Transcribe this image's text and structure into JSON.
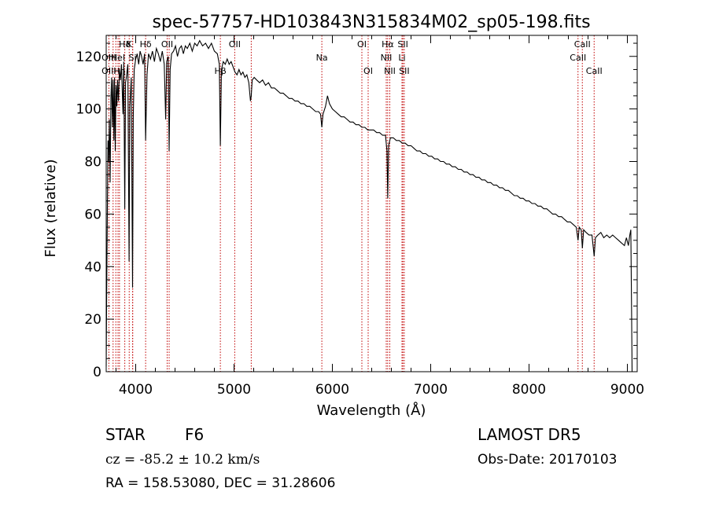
{
  "chart_data": {
    "type": "line",
    "title": "spec-57757-HD103843N315834M02_sp05-198.fits",
    "xlabel": "Wavelength (Å)",
    "ylabel": "Flux (relative)",
    "xlim": [
      3700,
      9100
    ],
    "ylim": [
      0,
      128
    ],
    "xticks": [
      4000,
      5000,
      6000,
      7000,
      8000,
      9000
    ],
    "yticks": [
      0,
      20,
      40,
      60,
      80,
      100,
      120
    ],
    "grid": false,
    "series": [
      {
        "color": "#000000",
        "points": [
          [
            3700,
            2
          ],
          [
            3705,
            30
          ],
          [
            3712,
            62
          ],
          [
            3718,
            88
          ],
          [
            3725,
            80
          ],
          [
            3732,
            96
          ],
          [
            3740,
            72
          ],
          [
            3748,
            104
          ],
          [
            3755,
            112
          ],
          [
            3763,
            93
          ],
          [
            3770,
            111
          ],
          [
            3778,
            88
          ],
          [
            3785,
            112
          ],
          [
            3792,
            84
          ],
          [
            3800,
            109
          ],
          [
            3808,
            101
          ],
          [
            3815,
            111
          ],
          [
            3825,
            103
          ],
          [
            3834,
            115
          ],
          [
            3845,
            111
          ],
          [
            3855,
            117
          ],
          [
            3870,
            98
          ],
          [
            3878,
            118
          ],
          [
            3889,
            62
          ],
          [
            3897,
            110
          ],
          [
            3905,
            112
          ],
          [
            3920,
            117
          ],
          [
            3933,
            42
          ],
          [
            3940,
            101
          ],
          [
            3955,
            112
          ],
          [
            3968,
            32
          ],
          [
            3975,
            97
          ],
          [
            3985,
            115
          ],
          [
            4000,
            119
          ],
          [
            4015,
            121
          ],
          [
            4030,
            117
          ],
          [
            4045,
            122
          ],
          [
            4060,
            120
          ],
          [
            4075,
            117
          ],
          [
            4090,
            121
          ],
          [
            4101,
            88
          ],
          [
            4115,
            113
          ],
          [
            4130,
            121
          ],
          [
            4150,
            119
          ],
          [
            4170,
            122
          ],
          [
            4190,
            118
          ],
          [
            4210,
            123
          ],
          [
            4230,
            121
          ],
          [
            4250,
            118
          ],
          [
            4270,
            122
          ],
          [
            4290,
            117
          ],
          [
            4305,
            96
          ],
          [
            4315,
            118
          ],
          [
            4330,
            120
          ],
          [
            4340,
            84
          ],
          [
            4350,
            115
          ],
          [
            4365,
            121
          ],
          [
            4385,
            122
          ],
          [
            4405,
            124
          ],
          [
            4425,
            120
          ],
          [
            4445,
            123
          ],
          [
            4465,
            124
          ],
          [
            4485,
            121
          ],
          [
            4505,
            124
          ],
          [
            4525,
            123
          ],
          [
            4550,
            125
          ],
          [
            4575,
            122
          ],
          [
            4600,
            125
          ],
          [
            4625,
            124
          ],
          [
            4650,
            126
          ],
          [
            4680,
            124
          ],
          [
            4710,
            125
          ],
          [
            4740,
            123
          ],
          [
            4770,
            125
          ],
          [
            4800,
            122
          ],
          [
            4830,
            121
          ],
          [
            4850,
            117
          ],
          [
            4861,
            86
          ],
          [
            4872,
            115
          ],
          [
            4890,
            118
          ],
          [
            4910,
            117
          ],
          [
            4930,
            119
          ],
          [
            4950,
            117
          ],
          [
            4970,
            118
          ],
          [
            4990,
            116
          ],
          [
            5010,
            114
          ],
          [
            5030,
            113
          ],
          [
            5050,
            115
          ],
          [
            5070,
            113
          ],
          [
            5090,
            114
          ],
          [
            5110,
            112
          ],
          [
            5130,
            113
          ],
          [
            5150,
            110
          ],
          [
            5167,
            103
          ],
          [
            5175,
            105
          ],
          [
            5185,
            111
          ],
          [
            5205,
            112
          ],
          [
            5230,
            111
          ],
          [
            5260,
            110
          ],
          [
            5290,
            111
          ],
          [
            5320,
            109
          ],
          [
            5350,
            110
          ],
          [
            5380,
            108
          ],
          [
            5410,
            108
          ],
          [
            5440,
            107
          ],
          [
            5470,
            106
          ],
          [
            5500,
            106
          ],
          [
            5530,
            105
          ],
          [
            5560,
            104
          ],
          [
            5590,
            104
          ],
          [
            5620,
            103
          ],
          [
            5650,
            103
          ],
          [
            5680,
            102
          ],
          [
            5710,
            102
          ],
          [
            5740,
            101
          ],
          [
            5770,
            101
          ],
          [
            5800,
            100
          ],
          [
            5830,
            99
          ],
          [
            5860,
            99
          ],
          [
            5880,
            98
          ],
          [
            5893,
            93
          ],
          [
            5905,
            98
          ],
          [
            5930,
            101
          ],
          [
            5950,
            105
          ],
          [
            5970,
            102
          ],
          [
            6000,
            100
          ],
          [
            6030,
            99
          ],
          [
            6060,
            98
          ],
          [
            6090,
            97
          ],
          [
            6120,
            97
          ],
          [
            6150,
            96
          ],
          [
            6180,
            95
          ],
          [
            6210,
            95
          ],
          [
            6240,
            94
          ],
          [
            6270,
            94
          ],
          [
            6300,
            93
          ],
          [
            6330,
            93
          ],
          [
            6360,
            92
          ],
          [
            6390,
            92
          ],
          [
            6420,
            92
          ],
          [
            6450,
            91
          ],
          [
            6480,
            91
          ],
          [
            6510,
            90
          ],
          [
            6540,
            90
          ],
          [
            6555,
            84
          ],
          [
            6563,
            66
          ],
          [
            6572,
            86
          ],
          [
            6590,
            89
          ],
          [
            6620,
            89
          ],
          [
            6650,
            88
          ],
          [
            6680,
            88
          ],
          [
            6710,
            87
          ],
          [
            6740,
            87
          ],
          [
            6770,
            86
          ],
          [
            6800,
            86
          ],
          [
            6830,
            85
          ],
          [
            6860,
            84
          ],
          [
            6890,
            84
          ],
          [
            6920,
            83
          ],
          [
            6950,
            83
          ],
          [
            6980,
            82
          ],
          [
            7010,
            82
          ],
          [
            7040,
            81
          ],
          [
            7070,
            81
          ],
          [
            7100,
            80
          ],
          [
            7130,
            80
          ],
          [
            7160,
            79
          ],
          [
            7190,
            79
          ],
          [
            7220,
            78
          ],
          [
            7250,
            78
          ],
          [
            7280,
            77
          ],
          [
            7310,
            77
          ],
          [
            7340,
            76
          ],
          [
            7370,
            76
          ],
          [
            7400,
            75
          ],
          [
            7430,
            75
          ],
          [
            7460,
            74
          ],
          [
            7490,
            74
          ],
          [
            7520,
            73
          ],
          [
            7550,
            73
          ],
          [
            7580,
            72
          ],
          [
            7610,
            72
          ],
          [
            7640,
            71
          ],
          [
            7670,
            71
          ],
          [
            7700,
            70
          ],
          [
            7730,
            70
          ],
          [
            7760,
            69
          ],
          [
            7790,
            69
          ],
          [
            7820,
            68
          ],
          [
            7850,
            67
          ],
          [
            7880,
            67
          ],
          [
            7910,
            66
          ],
          [
            7940,
            66
          ],
          [
            7970,
            65
          ],
          [
            8000,
            65
          ],
          [
            8030,
            64
          ],
          [
            8060,
            64
          ],
          [
            8090,
            63
          ],
          [
            8120,
            63
          ],
          [
            8150,
            62
          ],
          [
            8180,
            62
          ],
          [
            8210,
            61
          ],
          [
            8240,
            60
          ],
          [
            8270,
            60
          ],
          [
            8300,
            59
          ],
          [
            8330,
            59
          ],
          [
            8360,
            58
          ],
          [
            8390,
            57
          ],
          [
            8420,
            57
          ],
          [
            8450,
            56
          ],
          [
            8480,
            55
          ],
          [
            8498,
            50
          ],
          [
            8510,
            55
          ],
          [
            8530,
            54
          ],
          [
            8542,
            47
          ],
          [
            8555,
            54
          ],
          [
            8580,
            53
          ],
          [
            8610,
            52
          ],
          [
            8640,
            52
          ],
          [
            8662,
            44
          ],
          [
            8675,
            51
          ],
          [
            8700,
            52
          ],
          [
            8730,
            53
          ],
          [
            8760,
            51
          ],
          [
            8790,
            52
          ],
          [
            8820,
            51
          ],
          [
            8850,
            52
          ],
          [
            8880,
            51
          ],
          [
            8910,
            50
          ],
          [
            8940,
            49
          ],
          [
            8970,
            48
          ],
          [
            8990,
            51
          ],
          [
            9010,
            48
          ],
          [
            9025,
            52
          ],
          [
            9035,
            54
          ],
          [
            9042,
            25
          ],
          [
            9048,
            0
          ]
        ]
      }
    ],
    "lines": [
      {
        "label": "Hδ",
        "wave": 3889,
        "row": 0
      },
      {
        "label": "K",
        "wave": 3934,
        "row": 0
      },
      {
        "label": "Hδ",
        "wave": 4101,
        "row": 0
      },
      {
        "label": "OII",
        "wave": 4320,
        "row": 0
      },
      {
        "label": "OII",
        "wave": 5007,
        "row": 0
      },
      {
        "label": "OI",
        "wave": 6300,
        "row": 0
      },
      {
        "label": "Hα",
        "wave": 6563,
        "row": 0
      },
      {
        "label": "SII",
        "wave": 6717,
        "row": 0
      },
      {
        "label": "CaII",
        "wave": 8542,
        "row": 0
      },
      {
        "label": "OIII",
        "wave": 3727,
        "row": 1
      },
      {
        "label": "HeI",
        "wave": 3820,
        "row": 1
      },
      {
        "label": "Si",
        "wave": 3968,
        "row": 1
      },
      {
        "label": "Na",
        "wave": 5893,
        "row": 1
      },
      {
        "label": "NII",
        "wave": 6548,
        "row": 1
      },
      {
        "label": "Li",
        "wave": 6708,
        "row": 1
      },
      {
        "label": "CaII",
        "wave": 8498,
        "row": 1
      },
      {
        "label": "OIII",
        "wave": 3727,
        "row": 2
      },
      {
        "label": "Hη",
        "wave": 3835,
        "row": 2
      },
      {
        "label": "Hβ",
        "wave": 4861,
        "row": 2
      },
      {
        "label": "OI",
        "wave": 6364,
        "row": 2
      },
      {
        "label": "NII",
        "wave": 6584,
        "row": 2
      },
      {
        "label": "SII",
        "wave": 6731,
        "row": 2
      },
      {
        "label": "CaII",
        "wave": 8662,
        "row": 2
      }
    ],
    "extra_line_waves": [
      3770,
      3798,
      3970,
      4340,
      5175
    ]
  },
  "footer": {
    "object_class": "STAR",
    "subclass": "F6",
    "survey": "LAMOST DR5",
    "redshift": "cz = -85.2 ± 10.2 km/s",
    "obs_date": "Obs-Date: 20170103",
    "coords": "RA = 158.53080, DEC =  31.28606"
  },
  "colors": {
    "line_marker": "#c00000",
    "spectrum": "#000000"
  }
}
